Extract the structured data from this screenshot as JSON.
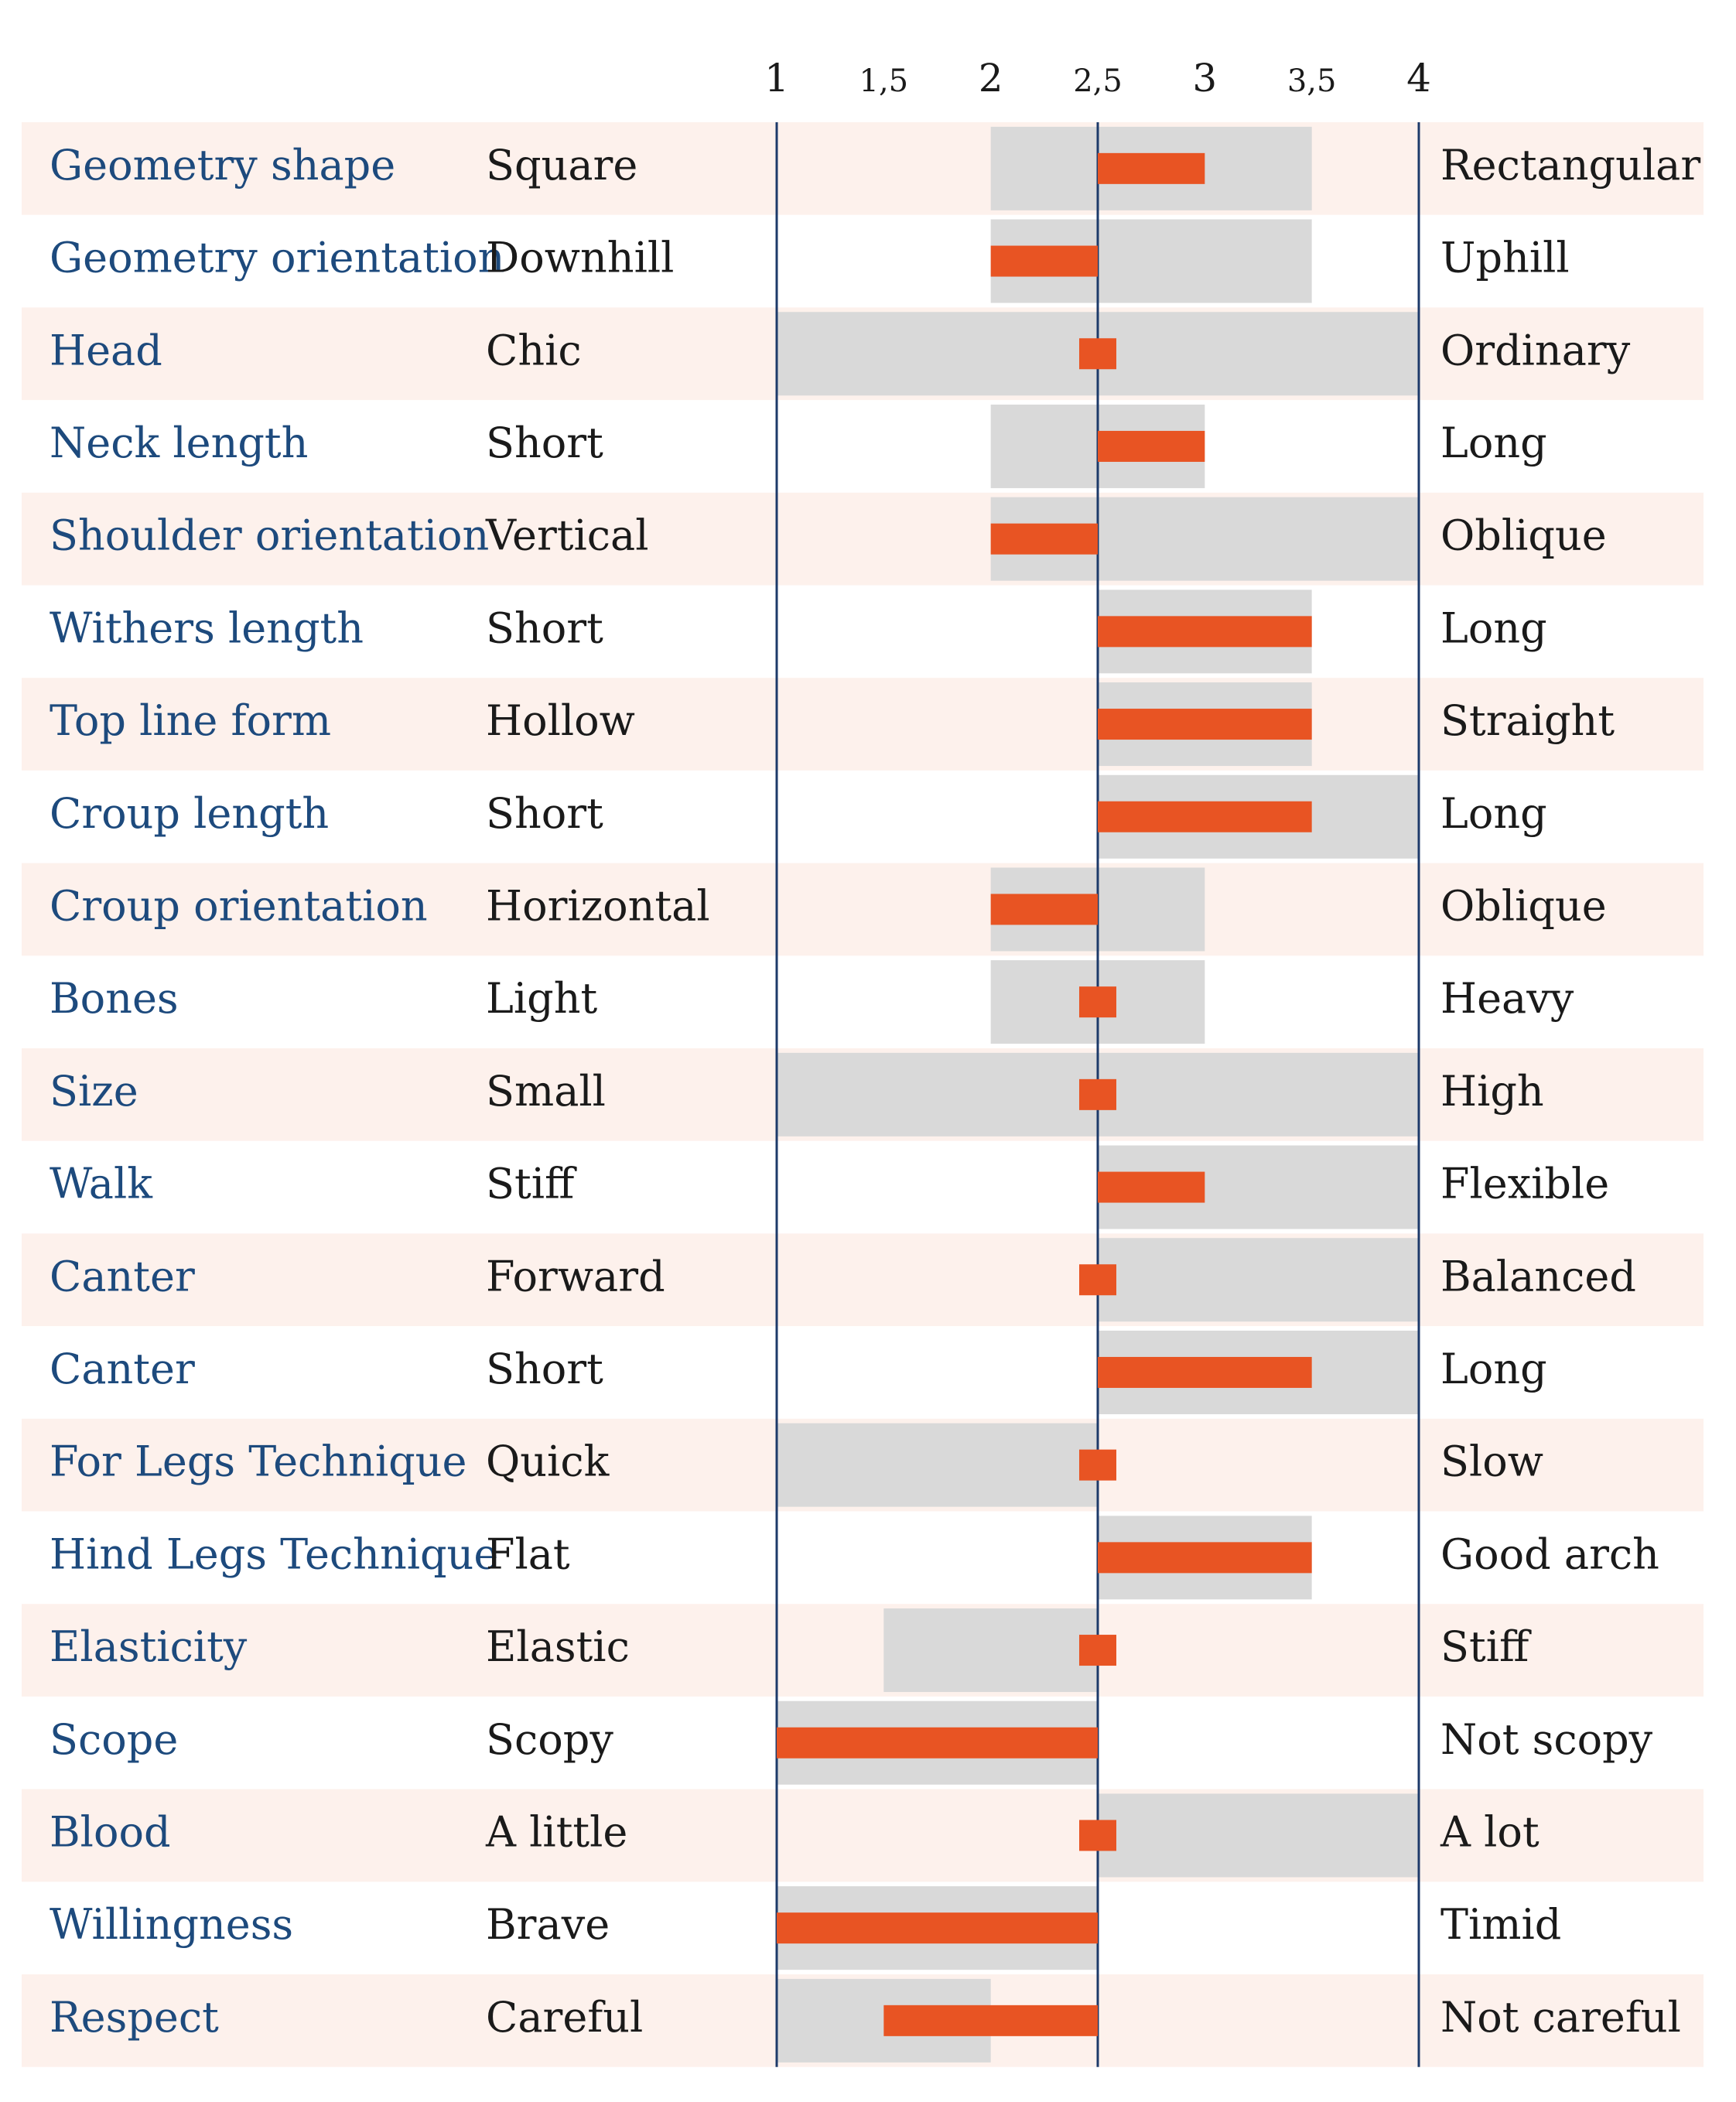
{
  "chart_data": {
    "type": "bar",
    "subtype": "semantic-differential (diverging range + score bars)",
    "x_ticks": [
      "1",
      "1,5",
      "2",
      "2,5",
      "3",
      "3,5",
      "4"
    ],
    "xlim": [
      1,
      4
    ],
    "center": 2.5,
    "row_striping": "alternating light peach / white",
    "colors": {
      "score_bar": "#e85423",
      "range_bar": "#d9d9d9",
      "stripe": "#fdf1ec",
      "trait_text": "#1d4a7d",
      "axis_line": "#1d3a6a"
    },
    "rows": [
      {
        "trait": "Geometry shape",
        "low": "Square",
        "high": "Rectangular",
        "range": [
          2,
          3.5
        ],
        "score": 3
      },
      {
        "trait": "Geometry orientation",
        "low": "Downhill",
        "high": "Uphill",
        "range": [
          2,
          3.5
        ],
        "score": 2
      },
      {
        "trait": "Head",
        "low": "Chic",
        "high": "Ordinary",
        "range": [
          1,
          4
        ],
        "score": 2.5
      },
      {
        "trait": "Neck length",
        "low": "Short",
        "high": "Long",
        "range": [
          2,
          3
        ],
        "score": 3
      },
      {
        "trait": "Shoulder orientation",
        "low": "Vertical",
        "high": "Oblique",
        "range": [
          2,
          4
        ],
        "score": 2
      },
      {
        "trait": "Withers length",
        "low": "Short",
        "high": "Long",
        "range": [
          2.5,
          3.5
        ],
        "score": 3.5
      },
      {
        "trait": "Top line form",
        "low": "Hollow",
        "high": "Straight",
        "range": [
          2.5,
          3.5
        ],
        "score": 3.5
      },
      {
        "trait": "Croup length",
        "low": "Short",
        "high": "Long",
        "range": [
          2.5,
          4
        ],
        "score": 3.5
      },
      {
        "trait": "Croup orientation",
        "low": "Horizontal",
        "high": "Oblique",
        "range": [
          2,
          3
        ],
        "score": 2
      },
      {
        "trait": "Bones",
        "low": "Light",
        "high": "Heavy",
        "range": [
          2,
          3
        ],
        "score": 2.5
      },
      {
        "trait": "Size",
        "low": "Small",
        "high": "High",
        "range": [
          1,
          4
        ],
        "score": 2.5
      },
      {
        "trait": "Walk",
        "low": "Stiff",
        "high": "Flexible",
        "range": [
          2.5,
          4
        ],
        "score": 3
      },
      {
        "trait": "Canter",
        "low": "Forward",
        "high": "Balanced",
        "range": [
          2.5,
          4
        ],
        "score": 2.5
      },
      {
        "trait": "Canter",
        "low": "Short",
        "high": "Long",
        "range": [
          2.5,
          4
        ],
        "score": 3.5
      },
      {
        "trait": "For Legs Technique",
        "low": "Quick",
        "high": "Slow",
        "range": [
          1,
          2.5
        ],
        "score": 2.5
      },
      {
        "trait": "Hind Legs Technique",
        "low": "Flat",
        "high": "Good arch",
        "range": [
          2.5,
          3.5
        ],
        "score": 3.5
      },
      {
        "trait": "Elasticity",
        "low": "Elastic",
        "high": "Stiff",
        "range": [
          1.5,
          2.5
        ],
        "score": 2.5
      },
      {
        "trait": "Scope",
        "low": "Scopy",
        "high": "Not scopy",
        "range": [
          1,
          2.5
        ],
        "score": 1
      },
      {
        "trait": "Blood",
        "low": "A little",
        "high": "A lot",
        "range": [
          2.5,
          4
        ],
        "score": 2.5
      },
      {
        "trait": "Willingness",
        "low": "Brave",
        "high": "Timid",
        "range": [
          1,
          2.5
        ],
        "score": 1
      },
      {
        "trait": "Respect",
        "low": "Careful",
        "high": "Not careful",
        "range": [
          1,
          2
        ],
        "score": 1.5
      }
    ]
  }
}
